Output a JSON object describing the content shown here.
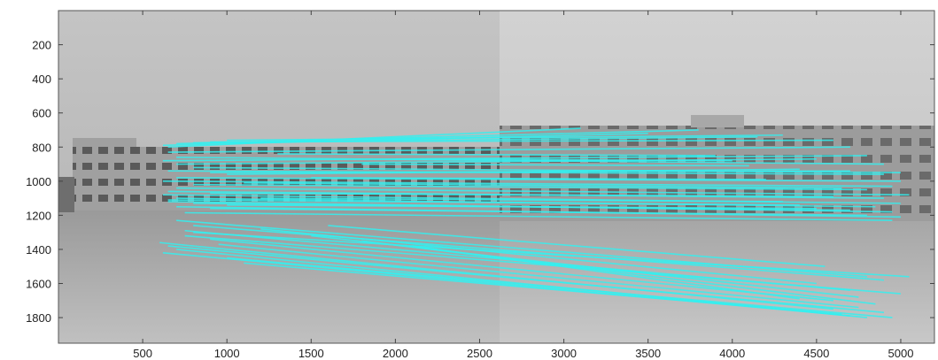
{
  "chart_data": {
    "type": "scatter",
    "title": "",
    "xlabel": "",
    "ylabel": "",
    "xlim": [
      0,
      5200
    ],
    "ylim": [
      1950,
      0
    ],
    "y_direction": "reversed",
    "x_ticks": [
      500,
      1000,
      1500,
      2000,
      2500,
      3000,
      3500,
      4000,
      4500,
      5000
    ],
    "y_ticks": [
      200,
      400,
      600,
      800,
      1000,
      1200,
      1400,
      1600,
      1800
    ],
    "x_tick_labels": [
      "500",
      "1000",
      "1500",
      "2000",
      "2500",
      "3000",
      "3500",
      "4000",
      "4500",
      "5000"
    ],
    "y_tick_labels": [
      "200",
      "400",
      "600",
      "800",
      "1000",
      "1200",
      "1400",
      "1600",
      "1800"
    ],
    "grid": false,
    "legend": "none",
    "background": "side-by-side grayscale photographs of a multi-storey building, left image spans x 0–2600, right image spans x 2600–5200",
    "match_line_color": "#33f0f0",
    "match_lines": [
      [
        620,
        790,
        3500,
        720
      ],
      [
        700,
        780,
        3800,
        700
      ],
      [
        800,
        775,
        4150,
        740
      ],
      [
        650,
        800,
        3100,
        690
      ],
      [
        900,
        770,
        4600,
        760
      ],
      [
        1000,
        760,
        4300,
        730
      ],
      [
        650,
        830,
        4700,
        800
      ],
      [
        700,
        860,
        4900,
        900
      ],
      [
        620,
        880,
        4800,
        850
      ],
      [
        700,
        900,
        4500,
        870
      ],
      [
        800,
        920,
        5000,
        950
      ],
      [
        650,
        940,
        4900,
        960
      ],
      [
        900,
        950,
        4700,
        940
      ],
      [
        1000,
        960,
        4400,
        930
      ],
      [
        700,
        980,
        5000,
        1000
      ],
      [
        620,
        1000,
        4950,
        1030
      ],
      [
        800,
        1020,
        4800,
        1050
      ],
      [
        700,
        1040,
        5050,
        1080
      ],
      [
        650,
        1060,
        4900,
        1100
      ],
      [
        900,
        1070,
        4600,
        1090
      ],
      [
        620,
        1080,
        5000,
        1130
      ],
      [
        700,
        1100,
        4850,
        1150
      ],
      [
        650,
        1120,
        4950,
        1180
      ],
      [
        800,
        1130,
        4700,
        1170
      ],
      [
        1000,
        1140,
        4500,
        1160
      ],
      [
        700,
        1150,
        5000,
        1210
      ],
      [
        900,
        1160,
        4800,
        1200
      ],
      [
        650,
        1110,
        4400,
        1140
      ],
      [
        1200,
        1100,
        4300,
        1120
      ],
      [
        1500,
        980,
        4200,
        990
      ],
      [
        1800,
        900,
        4100,
        910
      ],
      [
        2000,
        870,
        4000,
        880
      ],
      [
        1300,
        840,
        3900,
        850
      ],
      [
        1100,
        1010,
        4650,
        1040
      ],
      [
        750,
        1185,
        4950,
        1230
      ],
      [
        700,
        1230,
        4800,
        1560
      ],
      [
        800,
        1260,
        4900,
        1580
      ],
      [
        750,
        1290,
        4700,
        1640
      ],
      [
        600,
        1360,
        4600,
        1750
      ],
      [
        650,
        1380,
        4900,
        1770
      ],
      [
        700,
        1400,
        4800,
        1800
      ],
      [
        620,
        1420,
        4700,
        1790
      ],
      [
        1000,
        1450,
        4950,
        1800
      ],
      [
        800,
        1300,
        5050,
        1560
      ],
      [
        900,
        1340,
        4600,
        1700
      ],
      [
        1200,
        1280,
        4500,
        1600
      ],
      [
        1500,
        1320,
        4750,
        1680
      ],
      [
        1800,
        1350,
        4850,
        1720
      ],
      [
        2100,
        1380,
        4400,
        1690
      ],
      [
        1100,
        1480,
        4650,
        1780
      ],
      [
        1600,
        1260,
        4550,
        1500
      ],
      [
        750,
        1320,
        5000,
        1660
      ],
      [
        950,
        1370,
        4750,
        1740
      ]
    ]
  }
}
